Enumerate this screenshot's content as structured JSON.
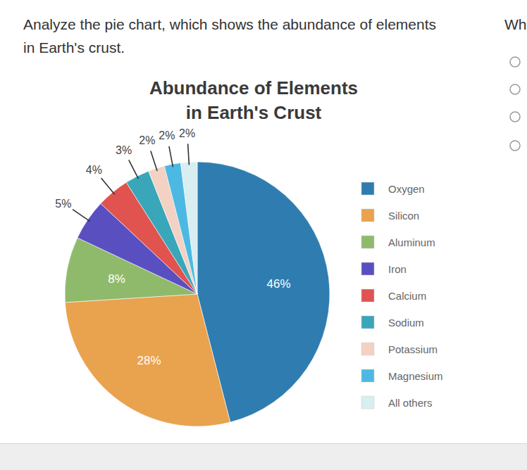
{
  "prompt": "Analyze the pie chart, which shows the abundance of elements in Earth's crust.",
  "question_fragment": "Wh",
  "chart_data": {
    "type": "pie",
    "title": "Abundance of Elements in Earth's Crust",
    "categories": [
      "Oxygen",
      "Silicon",
      "Aluminum",
      "Iron",
      "Calcium",
      "Sodium",
      "Potassium",
      "Magnesium",
      "All others"
    ],
    "values": [
      46,
      28,
      8,
      5,
      4,
      3,
      2,
      2,
      2
    ],
    "value_labels": [
      "46%",
      "28%",
      "8%",
      "5%",
      "4%",
      "3%",
      "2%",
      "2%",
      "2%"
    ],
    "colors": [
      "#2f7db0",
      "#e9a24e",
      "#8fba6c",
      "#5a4fc0",
      "#e0534f",
      "#3aa6b9",
      "#f3d2c4",
      "#4db9e2",
      "#d8eef1"
    ],
    "data_labels": true,
    "legend": "right"
  }
}
